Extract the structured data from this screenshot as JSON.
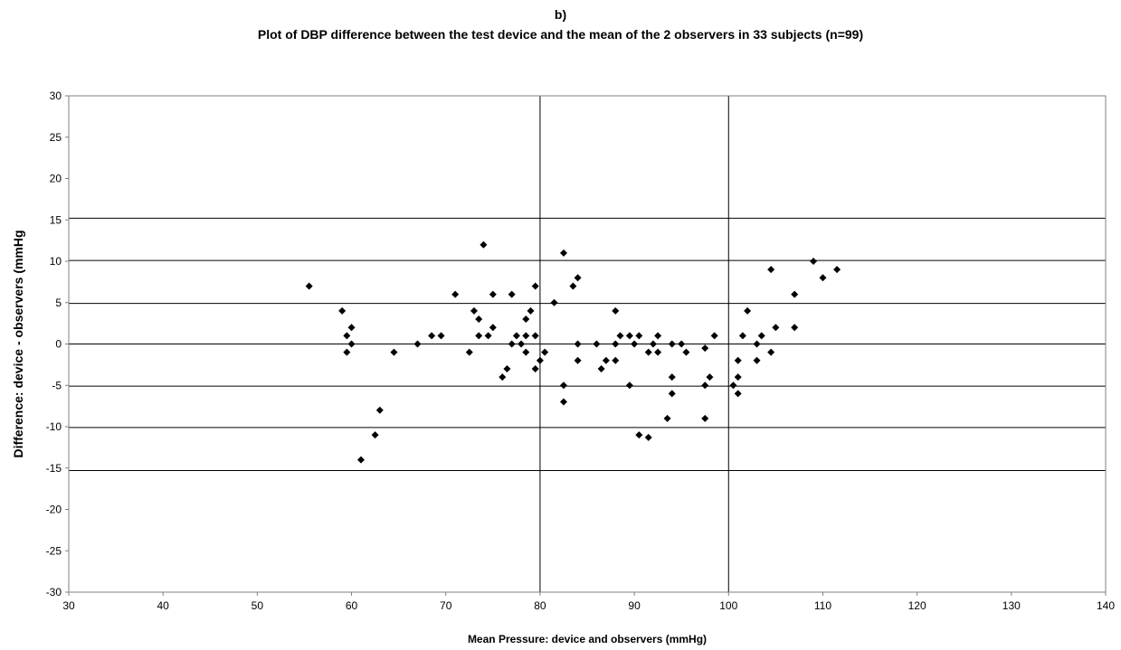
{
  "chart_data": {
    "type": "scatter",
    "title_prefix": "b)",
    "title": "Plot of DBP difference between the test device and the mean of  the 2 observers in 33 subjects (n=99)",
    "xlabel": "Mean Pressure: device and observers (mmHg)",
    "ylabel": "Difference: device - observers (mmHg",
    "xlim": [
      30,
      140
    ],
    "ylim": [
      -30,
      30
    ],
    "xticks": [
      "30",
      "40",
      "50",
      "60",
      "70",
      "80",
      "90",
      "100",
      "110",
      "120",
      "130",
      "140"
    ],
    "yticks": [
      "30",
      "25",
      "20",
      "15",
      "10",
      "5",
      "0",
      "-5",
      "-10",
      "-15",
      "-20",
      "-25",
      "-30"
    ],
    "reference_lines_y": [
      15.2,
      10.1,
      4.9,
      0,
      -5.1,
      -10.1,
      -15.3
    ],
    "reference_lines_x": [
      80,
      100
    ],
    "marker_color": "#000000",
    "points": [
      [
        55.5,
        7
      ],
      [
        59,
        4
      ],
      [
        59.5,
        1
      ],
      [
        59.5,
        -1
      ],
      [
        60,
        2
      ],
      [
        60,
        0
      ],
      [
        61,
        -14
      ],
      [
        62.5,
        -11
      ],
      [
        63,
        -8
      ],
      [
        64.5,
        -1
      ],
      [
        67,
        0
      ],
      [
        68.5,
        1
      ],
      [
        69.5,
        1
      ],
      [
        71,
        6
      ],
      [
        72.5,
        -1
      ],
      [
        73,
        4
      ],
      [
        73.5,
        3
      ],
      [
        73.5,
        1
      ],
      [
        74,
        12
      ],
      [
        74.5,
        1
      ],
      [
        75,
        6
      ],
      [
        75,
        2
      ],
      [
        76,
        -4
      ],
      [
        76.5,
        -3
      ],
      [
        77,
        6
      ],
      [
        77,
        0
      ],
      [
        77.5,
        1
      ],
      [
        78,
        0
      ],
      [
        78.5,
        -1
      ],
      [
        78.5,
        3
      ],
      [
        79,
        4
      ],
      [
        78.5,
        1
      ],
      [
        79.5,
        7
      ],
      [
        79.5,
        -3
      ],
      [
        79.5,
        1
      ],
      [
        80,
        -2
      ],
      [
        80.5,
        -1
      ],
      [
        81.5,
        5
      ],
      [
        82.5,
        11
      ],
      [
        82.5,
        -5
      ],
      [
        82.5,
        -7
      ],
      [
        83.5,
        7
      ],
      [
        84,
        8
      ],
      [
        84,
        0
      ],
      [
        84,
        -2
      ],
      [
        86,
        0
      ],
      [
        86.5,
        -3
      ],
      [
        87,
        -2
      ],
      [
        88,
        4
      ],
      [
        88,
        0
      ],
      [
        88,
        -2
      ],
      [
        88.5,
        1
      ],
      [
        89.5,
        1
      ],
      [
        89.5,
        -5
      ],
      [
        90,
        0
      ],
      [
        90.5,
        1
      ],
      [
        90.5,
        -11
      ],
      [
        91.5,
        -1
      ],
      [
        91.5,
        -11.3
      ],
      [
        92,
        0
      ],
      [
        92.5,
        1
      ],
      [
        92.5,
        -1
      ],
      [
        93.5,
        -9
      ],
      [
        94,
        0
      ],
      [
        94,
        -4
      ],
      [
        94,
        -6
      ],
      [
        95,
        0
      ],
      [
        95.5,
        -1
      ],
      [
        97.5,
        -0.5
      ],
      [
        97.5,
        -5
      ],
      [
        97.5,
        -9
      ],
      [
        98,
        -4
      ],
      [
        98.5,
        1
      ],
      [
        100.5,
        -5
      ],
      [
        101,
        -2
      ],
      [
        101,
        -4
      ],
      [
        101,
        -6
      ],
      [
        101.5,
        1
      ],
      [
        102,
        4
      ],
      [
        103,
        0
      ],
      [
        103,
        -2
      ],
      [
        103.5,
        1
      ],
      [
        104.5,
        9
      ],
      [
        104.5,
        -1
      ],
      [
        105,
        2
      ],
      [
        107,
        6
      ],
      [
        107,
        2
      ],
      [
        109,
        10
      ],
      [
        110,
        8
      ],
      [
        111.5,
        9
      ]
    ]
  }
}
